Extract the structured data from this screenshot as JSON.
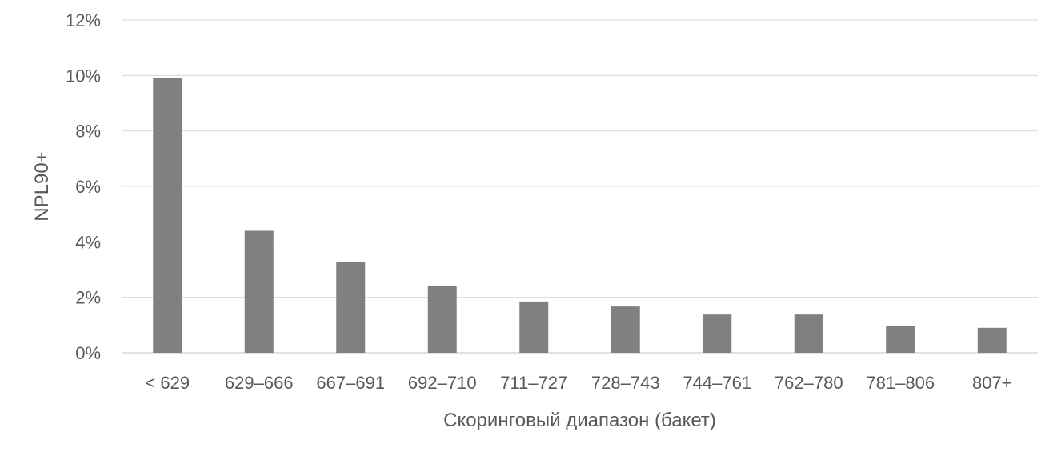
{
  "chart_data": {
    "type": "bar",
    "categories": [
      "< 629",
      "629–666",
      "667–691",
      "692–710",
      "711–727",
      "728–743",
      "744–761",
      "762–780",
      "781–806",
      "807+"
    ],
    "values": [
      9.9,
      4.4,
      3.28,
      2.42,
      1.85,
      1.67,
      1.38,
      1.38,
      0.98,
      0.9
    ],
    "xlabel": "Скоринговый диапазон (бакет)",
    "ylabel": "NPL90+",
    "ylim": [
      0,
      12
    ],
    "yticks": [
      0,
      2,
      4,
      6,
      8,
      10,
      12
    ],
    "ytick_format": "{v}%",
    "grid": true,
    "legend": "none",
    "bar_color": "#808080",
    "grid_color": "#d9d9d9"
  }
}
